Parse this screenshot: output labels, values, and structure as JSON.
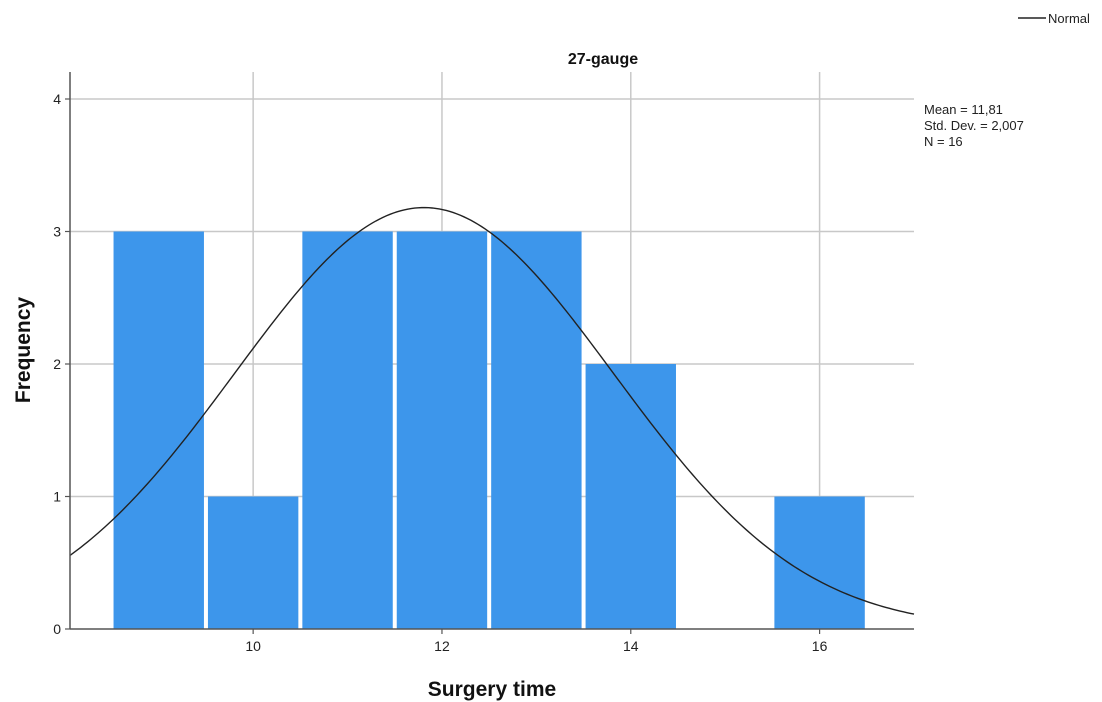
{
  "chart_data": {
    "type": "bar",
    "title": "27-gauge",
    "xlabel": "Surgery time",
    "ylabel": "Frequency",
    "bin_width": 1,
    "bins": [
      {
        "start": 8.5,
        "end": 9.5,
        "count": 3
      },
      {
        "start": 9.5,
        "end": 10.5,
        "count": 1
      },
      {
        "start": 10.5,
        "end": 11.5,
        "count": 3
      },
      {
        "start": 11.5,
        "end": 12.5,
        "count": 3
      },
      {
        "start": 12.5,
        "end": 13.5,
        "count": 3
      },
      {
        "start": 13.5,
        "end": 14.5,
        "count": 2
      },
      {
        "start": 15.5,
        "end": 16.5,
        "count": 1
      }
    ],
    "xlim": [
      8.06,
      17.0
    ],
    "ylim": [
      0,
      4.2
    ],
    "x_ticks": [
      10,
      12,
      14,
      16
    ],
    "x_tick_labels": [
      "10",
      "12",
      "14",
      "16"
    ],
    "y_ticks": [
      0,
      1,
      2,
      3,
      4
    ],
    "y_tick_labels": [
      "0",
      "1",
      "2",
      "3",
      "4"
    ],
    "grid": true,
    "bar_color": "#3d96eb",
    "curve_color": "#222222",
    "normal_curve": {
      "mean": 11.81,
      "std": 2.007,
      "n": 16
    },
    "stats_lines": [
      "Mean = 11,81",
      "Std. Dev. = 2,007",
      "N = 16"
    ],
    "legend": {
      "position": "top-right",
      "entries": [
        {
          "label": "Normal"
        }
      ]
    }
  }
}
